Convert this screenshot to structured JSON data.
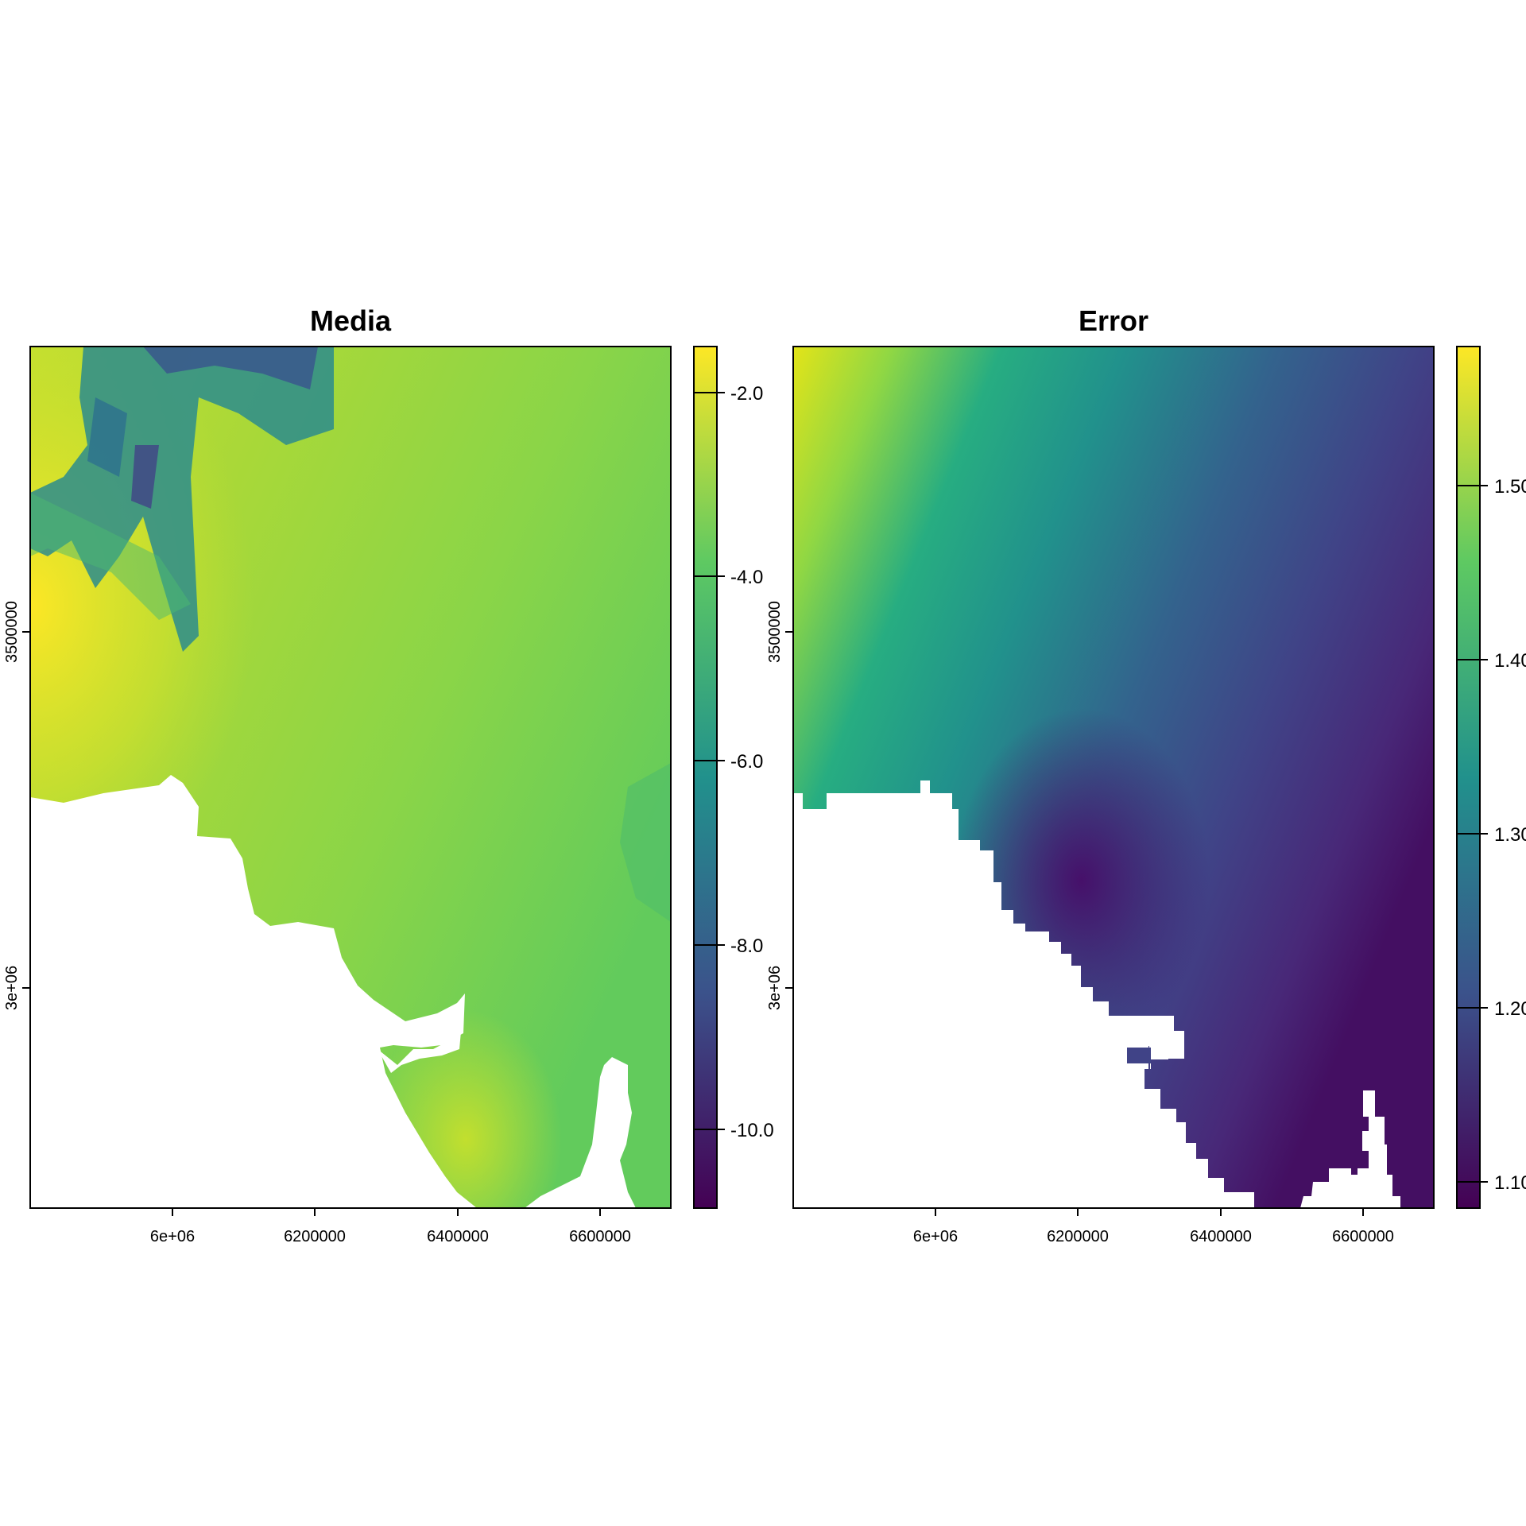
{
  "maps": [
    {
      "title": "Media",
      "x_ticks": [
        "6e+06",
        "6200000",
        "6400000",
        "6600000"
      ],
      "y_ticks": [
        "3500000",
        "3e+06"
      ],
      "colorbar": {
        "ticks": [
          "-2.0",
          "-4.0",
          "-6.0",
          "-8.0",
          "-10.0"
        ],
        "range": [
          -11.0,
          -1.5
        ]
      }
    },
    {
      "title": "Error",
      "x_ticks": [
        "6e+06",
        "6200000",
        "6400000",
        "6600000"
      ],
      "y_ticks": [
        "3500000",
        "3e+06"
      ],
      "colorbar": {
        "ticks": [
          "1.50",
          "1.40",
          "1.30",
          "1.20",
          "1.10"
        ],
        "range": [
          1.085,
          1.575
        ]
      }
    }
  ],
  "palette": {
    "name": "viridis",
    "stops": [
      "#440154",
      "#3b528b",
      "#21918c",
      "#5ec962",
      "#fde725"
    ]
  }
}
